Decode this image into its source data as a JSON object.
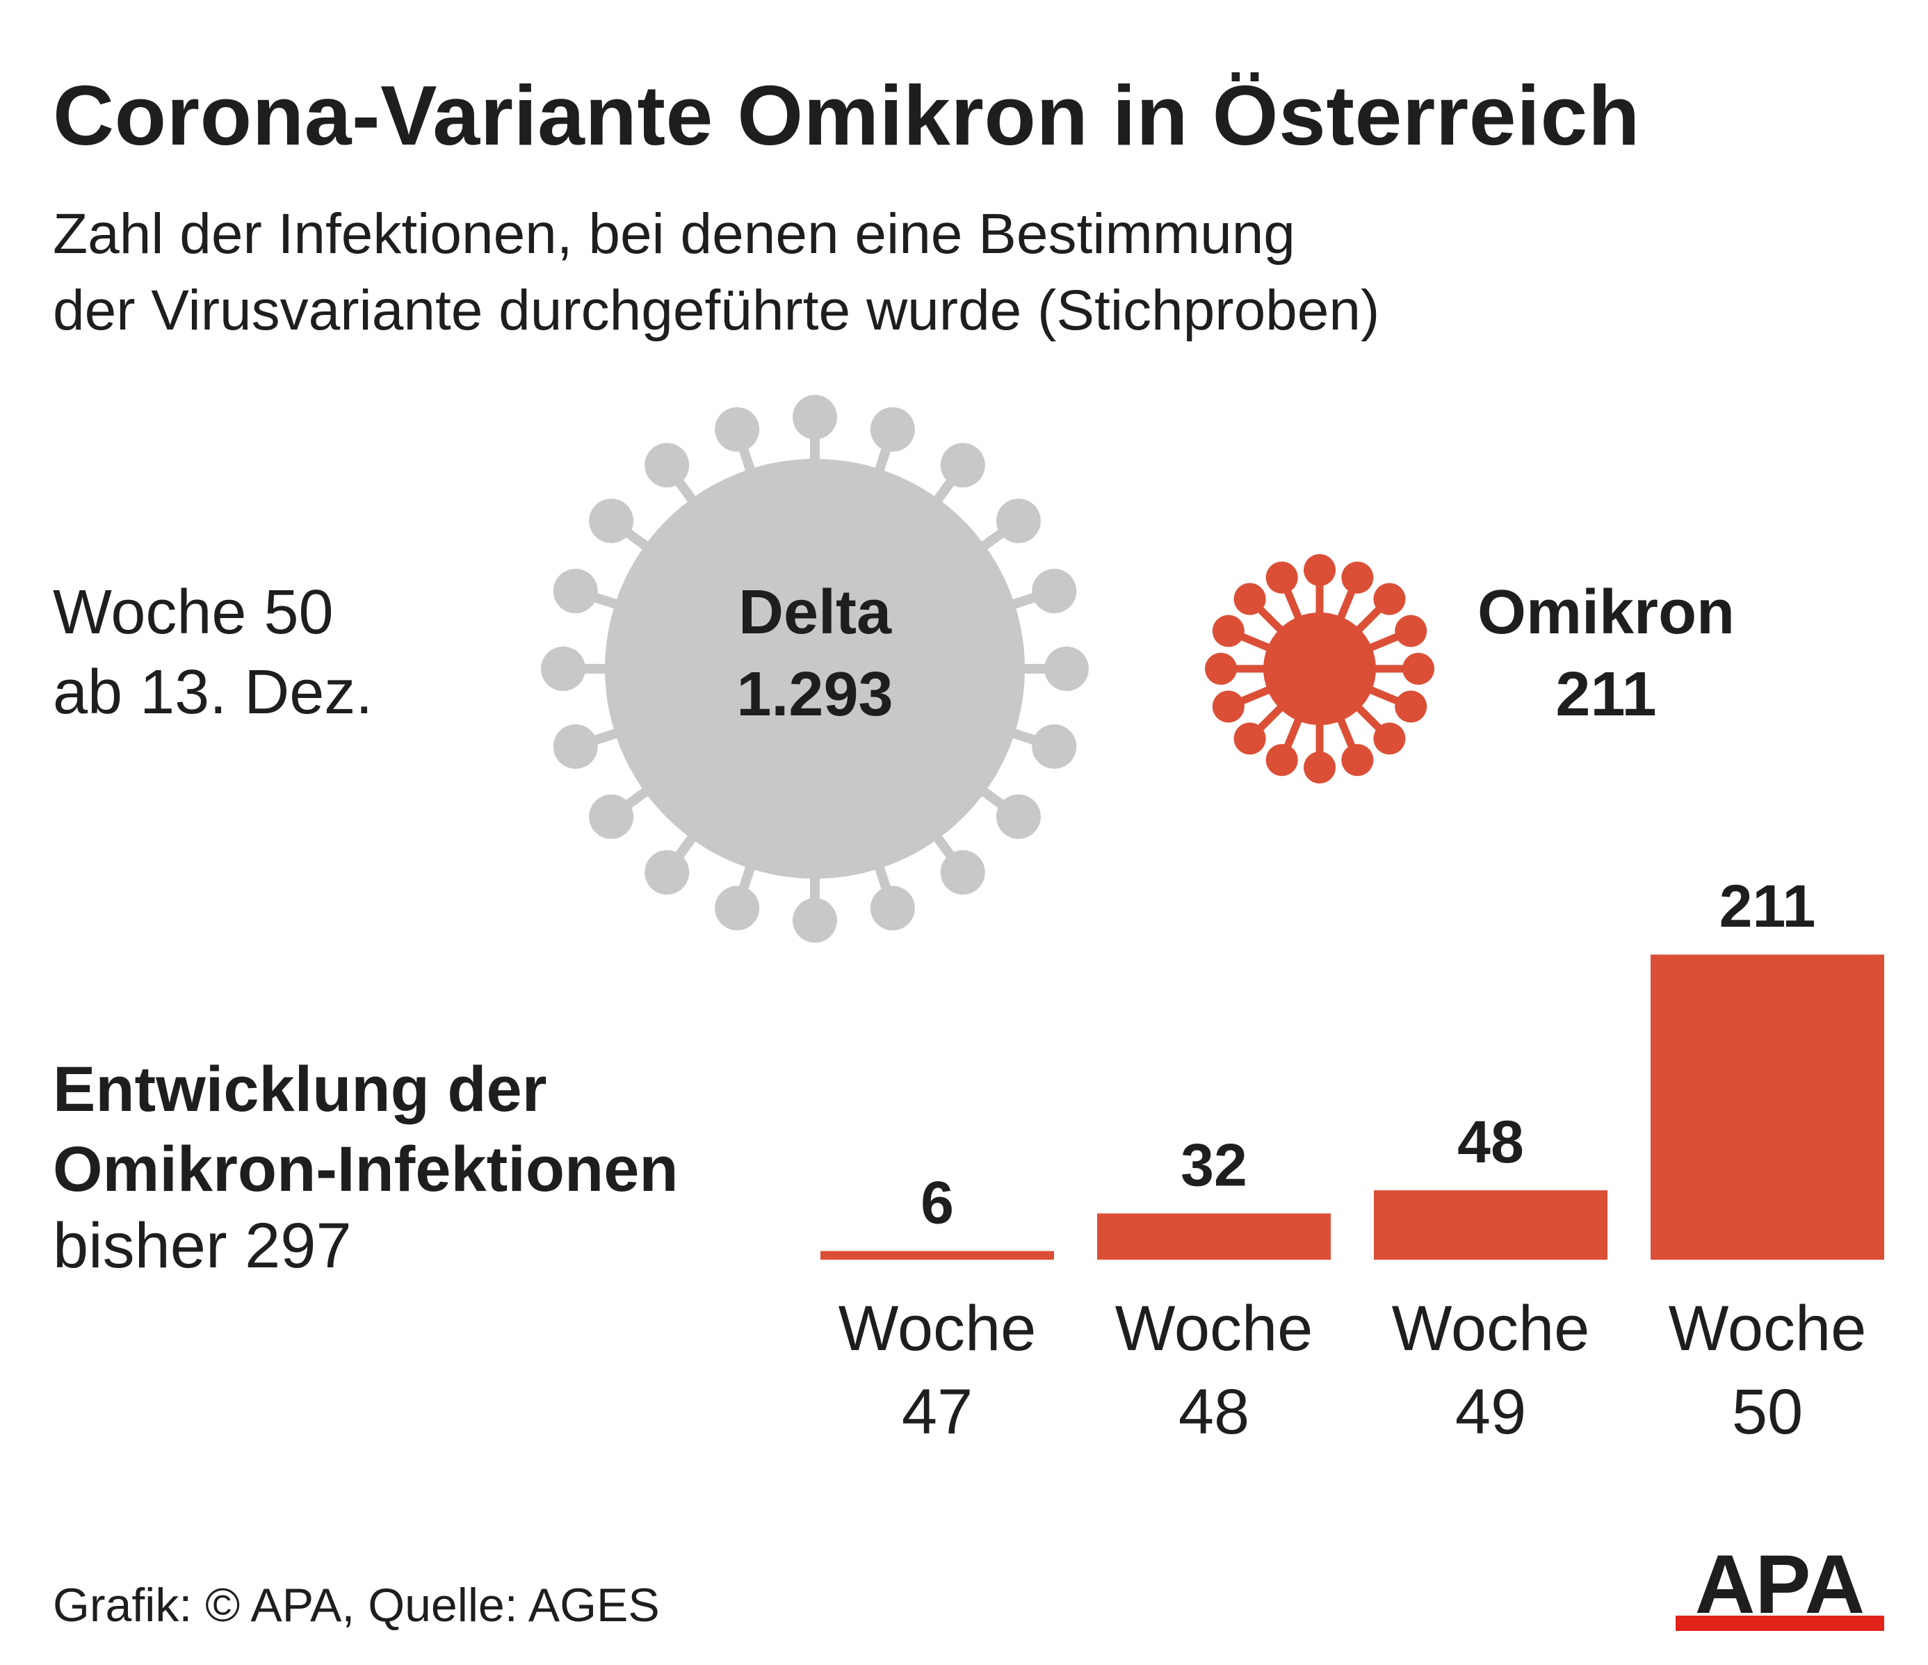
{
  "title": "Corona-Variante Omikron in Österreich",
  "subtitle_line1": "Zahl der Infektionen, bei denen eine Bestimmung",
  "subtitle_line2": "der Virusvariante durchgeführte wurde (Stichproben)",
  "week_block": {
    "line1": "Woche 50",
    "line2": "ab 13. Dez."
  },
  "variants": {
    "delta": {
      "name": "Delta",
      "value": "1.293",
      "color": "#c8c8c8"
    },
    "omikron": {
      "name": "Omikron",
      "value": "211",
      "color": "#db4f37"
    }
  },
  "development": {
    "line1": "Entwicklung der",
    "line2": "Omikron-Infektionen",
    "line3": "bisher 297"
  },
  "chart_data": {
    "type": "bar",
    "categories": [
      [
        "Woche",
        "47"
      ],
      [
        "Woche",
        "48"
      ],
      [
        "Woche",
        "49"
      ],
      [
        "Woche",
        "50"
      ]
    ],
    "values": [
      6,
      32,
      48,
      211
    ],
    "color": "#db4f37"
  },
  "footer": "Grafik: © APA, Quelle: AGES",
  "logo": {
    "text": "APA",
    "accent_color": "#e2231a"
  }
}
